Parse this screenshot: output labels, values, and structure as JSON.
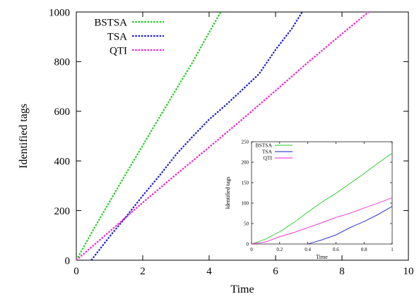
{
  "chart_data": [
    {
      "type": "line",
      "title": "",
      "xlabel": "Time",
      "ylabel": "Identified tags",
      "xlim": [
        0,
        10
      ],
      "ylim": [
        0,
        1000
      ],
      "xticks": [
        "0",
        "2",
        "4",
        "6",
        "8",
        "10"
      ],
      "yticks": [
        "0",
        "200",
        "400",
        "600",
        "800",
        "1000"
      ],
      "grid": false,
      "legend_position": "top-left",
      "line_style": "dotted",
      "series": [
        {
          "name": "BSTSA",
          "color": "#22cc22",
          "x": [
            0,
            0.5,
            1,
            1.5,
            2,
            2.5,
            3,
            3.5,
            4,
            4.35
          ],
          "y": [
            0,
            120,
            235,
            350,
            462,
            575,
            687,
            797,
            918,
            1000
          ]
        },
        {
          "name": "TSA",
          "color": "#1a1acc",
          "x": [
            0.45,
            1,
            1.5,
            2,
            2.5,
            3,
            3.5,
            4,
            4.5,
            5,
            5.5,
            6,
            6.5,
            6.8
          ],
          "y": [
            0,
            95,
            175,
            260,
            340,
            425,
            498,
            567,
            625,
            687,
            750,
            848,
            935,
            1000
          ]
        },
        {
          "name": "QTI",
          "color": "#ee22cc",
          "x": [
            0,
            1,
            2,
            3,
            4,
            5,
            6,
            7,
            8,
            8.8
          ],
          "y": [
            0,
            115,
            232,
            345,
            455,
            568,
            683,
            800,
            912,
            1000
          ]
        }
      ]
    },
    {
      "type": "line",
      "title": "",
      "xlabel": "Time",
      "ylabel": "Identified tags",
      "xlim": [
        0,
        1
      ],
      "ylim": [
        0,
        250
      ],
      "xticks": [
        "0",
        "0.2",
        "0.4",
        "0.6",
        "0.8",
        "1"
      ],
      "yticks": [
        "0",
        "50",
        "100",
        "150",
        "200",
        "250"
      ],
      "grid": false,
      "legend_position": "top-left",
      "series": [
        {
          "name": "BSTSA",
          "color": "#22cc22",
          "x": [
            0,
            0.1,
            0.2,
            0.3,
            0.4,
            0.5,
            0.6,
            0.7,
            0.8,
            0.9,
            1
          ],
          "y": [
            0,
            12,
            30,
            52,
            78,
            102,
            124,
            148,
            172,
            198,
            222
          ]
        },
        {
          "name": "TSA",
          "color": "#1a1acc",
          "x": [
            0.4,
            0.5,
            0.6,
            0.7,
            0.8,
            0.9,
            1
          ],
          "y": [
            0,
            10,
            22,
            40,
            55,
            72,
            92
          ]
        },
        {
          "name": "QTI",
          "color": "#ee22cc",
          "x": [
            0,
            0.1,
            0.2,
            0.3,
            0.4,
            0.5,
            0.6,
            0.7,
            0.8,
            0.9,
            1
          ],
          "y": [
            0,
            5,
            18,
            28,
            40,
            52,
            65,
            75,
            88,
            100,
            113
          ]
        }
      ]
    }
  ]
}
